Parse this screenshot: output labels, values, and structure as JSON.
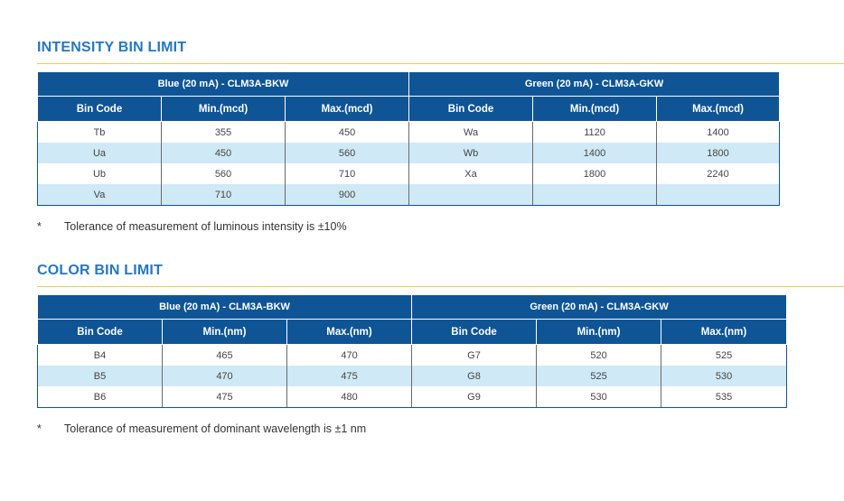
{
  "intensity": {
    "title": "INTENSITY BIN LIMIT",
    "groups": [
      "Blue (20 mA) - CLM3A-BKW",
      "Green (20 mA) - CLM3A-GKW"
    ],
    "columns": [
      "Bin Code",
      "Min.(mcd)",
      "Max.(mcd)",
      "Bin Code",
      "Min.(mcd)",
      "Max.(mcd)"
    ],
    "rows": [
      [
        "Tb",
        "355",
        "450",
        "Wa",
        "1120",
        "1400"
      ],
      [
        "Ua",
        "450",
        "560",
        "Wb",
        "1400",
        "1800"
      ],
      [
        "Ub",
        "560",
        "710",
        "Xa",
        "1800",
        "2240"
      ],
      [
        "Va",
        "710",
        "900",
        "",
        "",
        ""
      ]
    ],
    "note_marker": "*",
    "note": "Tolerance of measurement of luminous intensity is ±10%"
  },
  "color": {
    "title": "COLOR BIN LIMIT",
    "groups": [
      "Blue (20 mA) - CLM3A-BKW",
      "Green (20 mA) - CLM3A-GKW"
    ],
    "columns": [
      "Bin Code",
      "Min.(nm)",
      "Max.(nm)",
      "Bin Code",
      "Min.(nm)",
      "Max.(nm)"
    ],
    "rows": [
      [
        "B4",
        "465",
        "470",
        "G7",
        "520",
        "525"
      ],
      [
        "B5",
        "470",
        "475",
        "G8",
        "525",
        "530"
      ],
      [
        "B6",
        "475",
        "480",
        "G9",
        "530",
        "535"
      ]
    ],
    "note_marker": "*",
    "note": "Tolerance of measurement of dominant wavelength is ±1 nm"
  },
  "colors": {
    "title_blue": "#2478c4",
    "header_navy": "#0f5596",
    "row_stripe": "#cfe9f6",
    "rule_yellow": "#e9cf4c"
  }
}
